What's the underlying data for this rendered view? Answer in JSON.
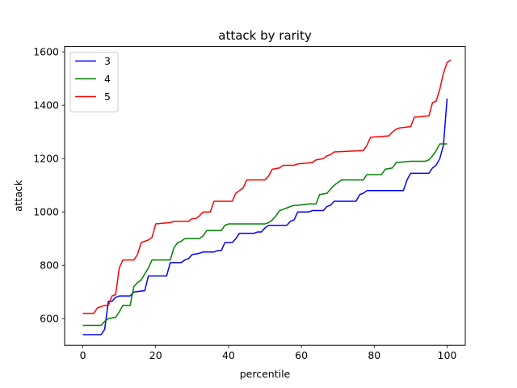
{
  "chart_data": {
    "type": "line",
    "title": "attack by rarity",
    "xlabel": "percentile",
    "ylabel": "attack",
    "xlim": [
      -5,
      105
    ],
    "ylim": [
      500,
      1620
    ],
    "xticks": [
      0,
      20,
      40,
      60,
      80,
      100
    ],
    "yticks": [
      600,
      800,
      1000,
      1200,
      1400,
      1600
    ],
    "grid": false,
    "legend": "upper-left",
    "series": [
      {
        "name": "3",
        "color": "#0000ff",
        "points": [
          [
            0,
            540
          ],
          [
            5,
            540
          ],
          [
            6,
            560
          ],
          [
            7,
            665
          ],
          [
            8,
            665
          ],
          [
            9,
            680
          ],
          [
            10,
            685
          ],
          [
            13,
            685
          ],
          [
            14,
            700
          ],
          [
            17,
            705
          ],
          [
            18,
            760
          ],
          [
            23,
            760
          ],
          [
            24,
            810
          ],
          [
            27,
            810
          ],
          [
            28,
            820
          ],
          [
            29,
            825
          ],
          [
            30,
            840
          ],
          [
            32,
            845
          ],
          [
            33,
            850
          ],
          [
            36,
            850
          ],
          [
            37,
            855
          ],
          [
            38,
            855
          ],
          [
            39,
            885
          ],
          [
            41,
            885
          ],
          [
            42,
            900
          ],
          [
            43,
            920
          ],
          [
            47,
            920
          ],
          [
            48,
            925
          ],
          [
            49,
            925
          ],
          [
            50,
            940
          ],
          [
            51,
            950
          ],
          [
            56,
            950
          ],
          [
            57,
            965
          ],
          [
            58,
            970
          ],
          [
            59,
            1000
          ],
          [
            62,
            1000
          ],
          [
            63,
            1005
          ],
          [
            66,
            1005
          ],
          [
            67,
            1020
          ],
          [
            68,
            1025
          ],
          [
            69,
            1040
          ],
          [
            75,
            1040
          ],
          [
            76,
            1065
          ],
          [
            77,
            1070
          ],
          [
            78,
            1080
          ],
          [
            88,
            1080
          ],
          [
            89,
            1120
          ],
          [
            90,
            1145
          ],
          [
            95,
            1145
          ],
          [
            96,
            1165
          ],
          [
            97,
            1175
          ],
          [
            98,
            1200
          ],
          [
            99,
            1250
          ],
          [
            100,
            1425
          ]
        ]
      },
      {
        "name": "4",
        "color": "#008000",
        "points": [
          [
            0,
            575
          ],
          [
            5,
            575
          ],
          [
            6,
            590
          ],
          [
            7,
            600
          ],
          [
            9,
            605
          ],
          [
            10,
            625
          ],
          [
            11,
            650
          ],
          [
            13,
            650
          ],
          [
            14,
            720
          ],
          [
            15,
            735
          ],
          [
            16,
            745
          ],
          [
            18,
            790
          ],
          [
            19,
            820
          ],
          [
            24,
            820
          ],
          [
            25,
            865
          ],
          [
            26,
            885
          ],
          [
            27,
            890
          ],
          [
            28,
            900
          ],
          [
            32,
            900
          ],
          [
            33,
            910
          ],
          [
            34,
            930
          ],
          [
            38,
            930
          ],
          [
            39,
            950
          ],
          [
            40,
            955
          ],
          [
            50,
            955
          ],
          [
            51,
            960
          ],
          [
            52,
            970
          ],
          [
            53,
            985
          ],
          [
            54,
            1005
          ],
          [
            55,
            1010
          ],
          [
            56,
            1015
          ],
          [
            57,
            1020
          ],
          [
            58,
            1025
          ],
          [
            59,
            1025
          ],
          [
            62,
            1030
          ],
          [
            64,
            1030
          ],
          [
            65,
            1065
          ],
          [
            67,
            1070
          ],
          [
            68,
            1085
          ],
          [
            69,
            1100
          ],
          [
            70,
            1110
          ],
          [
            71,
            1120
          ],
          [
            77,
            1120
          ],
          [
            78,
            1140
          ],
          [
            82,
            1140
          ],
          [
            83,
            1160
          ],
          [
            85,
            1165
          ],
          [
            86,
            1185
          ],
          [
            90,
            1190
          ],
          [
            94,
            1190
          ],
          [
            95,
            1195
          ],
          [
            96,
            1210
          ],
          [
            97,
            1230
          ],
          [
            98,
            1255
          ],
          [
            100,
            1255
          ]
        ]
      },
      {
        "name": "5",
        "color": "#ff0000",
        "points": [
          [
            0,
            620
          ],
          [
            3,
            620
          ],
          [
            4,
            640
          ],
          [
            5,
            645
          ],
          [
            6,
            650
          ],
          [
            7,
            650
          ],
          [
            8,
            685
          ],
          [
            9,
            690
          ],
          [
            10,
            790
          ],
          [
            11,
            820
          ],
          [
            14,
            820
          ],
          [
            15,
            840
          ],
          [
            16,
            885
          ],
          [
            17,
            890
          ],
          [
            18,
            895
          ],
          [
            19,
            905
          ],
          [
            20,
            955
          ],
          [
            24,
            960
          ],
          [
            25,
            965
          ],
          [
            29,
            965
          ],
          [
            30,
            975
          ],
          [
            31,
            975
          ],
          [
            32,
            985
          ],
          [
            33,
            1000
          ],
          [
            35,
            1000
          ],
          [
            36,
            1040
          ],
          [
            41,
            1040
          ],
          [
            42,
            1070
          ],
          [
            43,
            1080
          ],
          [
            44,
            1090
          ],
          [
            45,
            1120
          ],
          [
            50,
            1120
          ],
          [
            51,
            1135
          ],
          [
            52,
            1160
          ],
          [
            54,
            1165
          ],
          [
            55,
            1175
          ],
          [
            58,
            1175
          ],
          [
            59,
            1180
          ],
          [
            63,
            1185
          ],
          [
            64,
            1195
          ],
          [
            66,
            1200
          ],
          [
            67,
            1210
          ],
          [
            68,
            1215
          ],
          [
            69,
            1225
          ],
          [
            77,
            1230
          ],
          [
            78,
            1250
          ],
          [
            79,
            1280
          ],
          [
            84,
            1285
          ],
          [
            85,
            1300
          ],
          [
            86,
            1310
          ],
          [
            87,
            1315
          ],
          [
            90,
            1320
          ],
          [
            91,
            1355
          ],
          [
            95,
            1360
          ],
          [
            96,
            1410
          ],
          [
            97,
            1415
          ],
          [
            98,
            1460
          ],
          [
            99,
            1520
          ],
          [
            100,
            1560
          ],
          [
            101,
            1570
          ]
        ]
      }
    ]
  }
}
